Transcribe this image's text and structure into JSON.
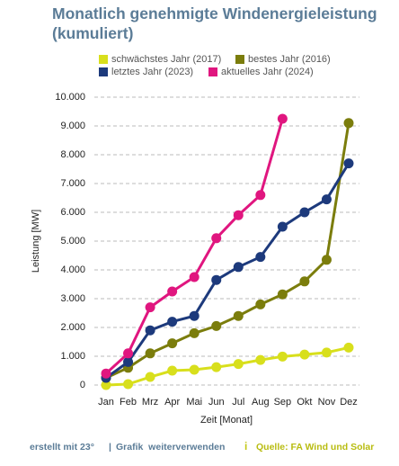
{
  "chart_data": {
    "type": "line",
    "title": "Monatlich genehmigte Windenergieleistung (kumuliert)",
    "categories": [
      "Jan",
      "Feb",
      "Mrz",
      "Apr",
      "Mai",
      "Jun",
      "Jul",
      "Aug",
      "Sep",
      "Okt",
      "Nov",
      "Dez"
    ],
    "series": [
      {
        "name": "schwächstes Jahr (2017)",
        "color": "#d8df1c",
        "values": [
          0,
          30,
          280,
          500,
          530,
          620,
          730,
          870,
          990,
          1060,
          1130,
          1300
        ]
      },
      {
        "name": "bestes Jahr (2016)",
        "color": "#7b7d0c",
        "values": [
          250,
          600,
          1100,
          1450,
          1800,
          2050,
          2400,
          2800,
          3150,
          3600,
          4350,
          9100
        ]
      },
      {
        "name": "letztes Jahr (2023)",
        "color": "#1d3a7c",
        "values": [
          250,
          800,
          1900,
          2200,
          2400,
          3650,
          4100,
          4450,
          5500,
          6000,
          6450,
          7700
        ]
      },
      {
        "name": "aktuelles Jahr (2024)",
        "color": "#e0167f",
        "values": [
          400,
          1100,
          2700,
          3250,
          3750,
          5100,
          5900,
          6600,
          9250,
          null,
          null,
          null
        ]
      }
    ],
    "ylabel": "Leistung [MW]",
    "xlabel": "Zeit [Monat]",
    "ylim": [
      0,
      10000
    ],
    "yticks": [
      0,
      {
        "value": 1000,
        "label": "1.000"
      },
      {
        "value": 2000,
        "label": "2.000"
      },
      {
        "value": 3000,
        "label": "3.000"
      },
      {
        "value": 4000,
        "label": "4.000"
      },
      {
        "value": 5000,
        "label": "5.000"
      },
      {
        "value": 6000,
        "label": "6.000"
      },
      {
        "value": 7000,
        "label": "7.000"
      },
      {
        "value": 8000,
        "label": "8.000"
      },
      {
        "value": 9000,
        "label": "9.000"
      },
      {
        "value": 10000,
        "label": "10.000"
      }
    ],
    "grid": true
  },
  "footer": {
    "credit": "erstellt mit 23°",
    "separator": "|",
    "share": "Grafik  weiterverwenden",
    "source_icon": "i",
    "source": "Quelle: FA Wind und Solar"
  }
}
